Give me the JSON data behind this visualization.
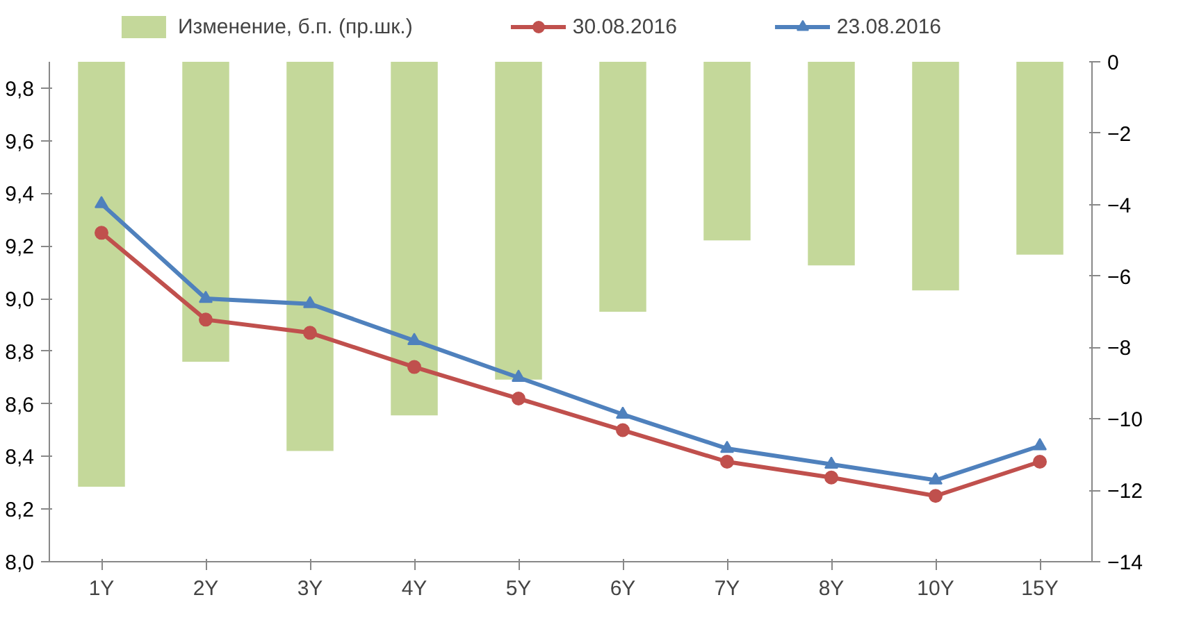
{
  "chart_data": {
    "type": "bar",
    "categories": [
      "1Y",
      "2Y",
      "3Y",
      "4Y",
      "5Y",
      "6Y",
      "7Y",
      "8Y",
      "10Y",
      "15Y"
    ],
    "series": [
      {
        "name": "Изменение, б.п. (пр.шк.)",
        "axis": "y2",
        "color": "#c4d89a",
        "values": [
          -11.9,
          -8.4,
          -10.9,
          -9.9,
          -8.9,
          -7.0,
          -5.0,
          -5.7,
          -6.4,
          -5.4
        ]
      },
      {
        "name": "30.08.2016",
        "type": "line",
        "marker": "circle",
        "color": "#c0504d",
        "values": [
          9.25,
          8.92,
          8.87,
          8.74,
          8.62,
          8.5,
          8.38,
          8.32,
          8.25,
          8.38
        ]
      },
      {
        "name": "23.08.2016",
        "type": "line",
        "marker": "triangle",
        "color": "#4f81bd",
        "values": [
          9.36,
          9.0,
          8.98,
          8.84,
          8.7,
          8.56,
          8.43,
          8.37,
          8.31,
          8.44
        ]
      }
    ],
    "ylim": [
      8.0,
      9.9
    ],
    "yticks": [
      {
        "value": 8.0,
        "label": "8,0"
      },
      {
        "value": 8.2,
        "label": "8,2"
      },
      {
        "value": 8.4,
        "label": "8,4"
      },
      {
        "value": 8.6,
        "label": "8,6"
      },
      {
        "value": 8.8,
        "label": "8,8"
      },
      {
        "value": 9.0,
        "label": "9,0"
      },
      {
        "value": 9.2,
        "label": "9,2"
      },
      {
        "value": 9.4,
        "label": "9,4"
      },
      {
        "value": 9.6,
        "label": "9,6"
      },
      {
        "value": 9.8,
        "label": "9,8"
      }
    ],
    "y2lim": [
      -14,
      0
    ],
    "y2ticks": [
      -14,
      -12,
      -10,
      -8,
      -6,
      -4,
      -2,
      0
    ],
    "legend": "top",
    "grid": false,
    "line_style": "solid"
  }
}
